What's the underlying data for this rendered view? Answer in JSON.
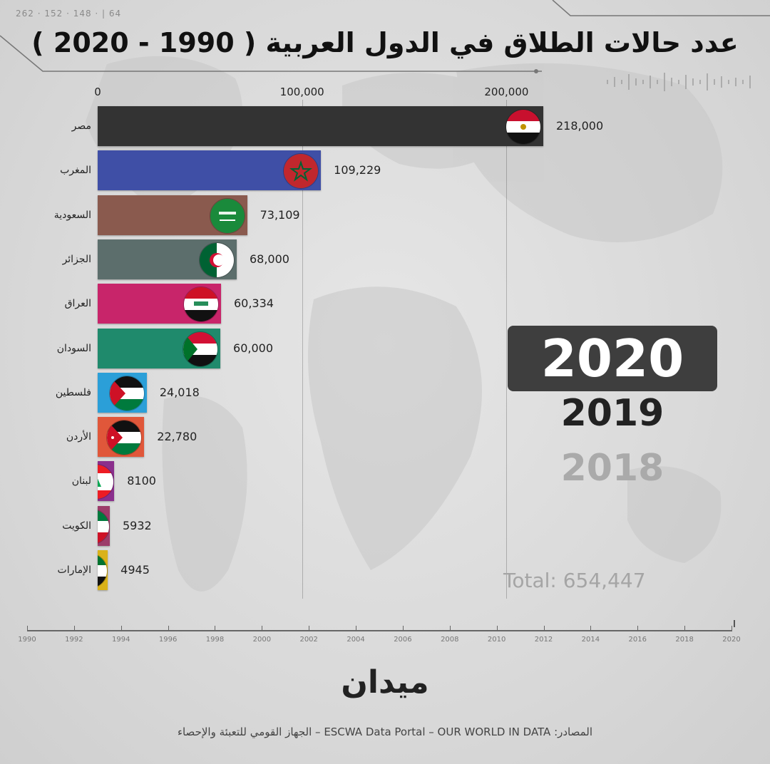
{
  "top_marks": "262 · 152 · 148 · | 64",
  "chart_data": {
    "type": "bar",
    "title": "عدد حالات الطلاق في الدول العربية ( 1990 - 2020 )",
    "xlim": [
      0,
      220000
    ],
    "x_ticks": [
      0,
      100000,
      200000
    ],
    "x_tick_labels": [
      "0",
      "100,000",
      "200,000"
    ],
    "categories": [
      "مصر",
      "المغرب",
      "السعودية",
      "الجزائر",
      "العراق",
      "السودان",
      "فلسطين",
      "الأردن",
      "لبنان",
      "الكويت",
      "الإمارات"
    ],
    "values": [
      218000,
      109229,
      73109,
      68000,
      60334,
      60000,
      24018,
      22780,
      8100,
      5932,
      4945
    ],
    "value_labels": [
      "218,000",
      "109,229",
      "73,109",
      "68,000",
      "60,334",
      "60,000",
      "24,018",
      "22,780",
      "8100",
      "5932",
      "4945"
    ],
    "bar_colors": [
      "#333333",
      "#3f4fa6",
      "#8a5a4e",
      "#5c6e6c",
      "#c8256a",
      "#1f8a6c",
      "#2b9fd8",
      "#e0573a",
      "#8a2e8c",
      "#9c3c6a",
      "#d9b21a"
    ],
    "flags": [
      "egypt",
      "morocco",
      "saudi",
      "algeria",
      "iraq",
      "sudan",
      "palestine",
      "jordan",
      "lebanon",
      "kuwait",
      "uae"
    ],
    "grid": true
  },
  "year": {
    "current": "2020",
    "previous": "2019",
    "older": "2018"
  },
  "total_label": "Total: 654,447",
  "timeline": {
    "labels": [
      "1990",
      "1992",
      "1994",
      "1996",
      "1998",
      "2000",
      "2002",
      "2004",
      "2006",
      "2008",
      "2010",
      "2012",
      "2014",
      "2016",
      "2018",
      "2020"
    ]
  },
  "logo_text": "ميدان",
  "sources": "المصادر: ESCWA Data Portal – OUR WORLD IN DATA – الجهاز القومي للتعبئة والإحصاء"
}
